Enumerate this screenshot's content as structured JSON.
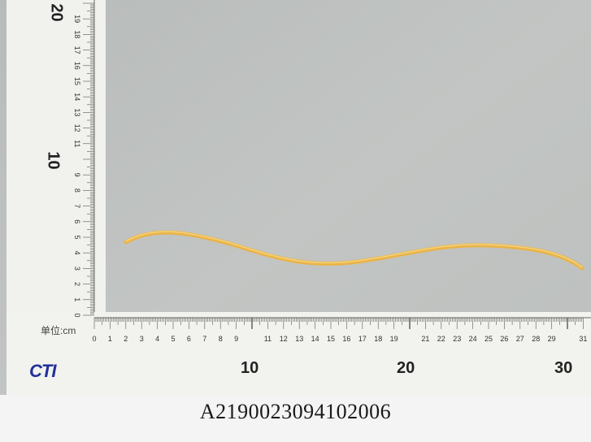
{
  "caption": "A2190023094102006",
  "ruler": {
    "unit_label": "单位:cm",
    "brand": "CTI",
    "h_major_labels": [
      "10",
      "20",
      "30"
    ],
    "h_minor_labels": [
      "0",
      "1",
      "2",
      "3",
      "4",
      "5",
      "6",
      "7",
      "8",
      "9",
      "11",
      "12",
      "13",
      "14",
      "15",
      "16",
      "17",
      "18",
      "19",
      "21",
      "22",
      "23",
      "24",
      "25",
      "26",
      "27",
      "28",
      "29",
      "31"
    ],
    "v_major_labels": [
      "20",
      "10"
    ],
    "v_minor_labels": [
      "19",
      "18",
      "17",
      "16",
      "15",
      "14",
      "13",
      "12",
      "11",
      "9",
      "8",
      "7",
      "6",
      "5",
      "4",
      "3",
      "2",
      "1",
      "0"
    ]
  },
  "colors": {
    "background": "#bfc2c0",
    "ruler": "#f2f2ef",
    "caption_bar": "#f4f4f4",
    "specimen": "#e8b54a",
    "brand": "#21309a"
  }
}
